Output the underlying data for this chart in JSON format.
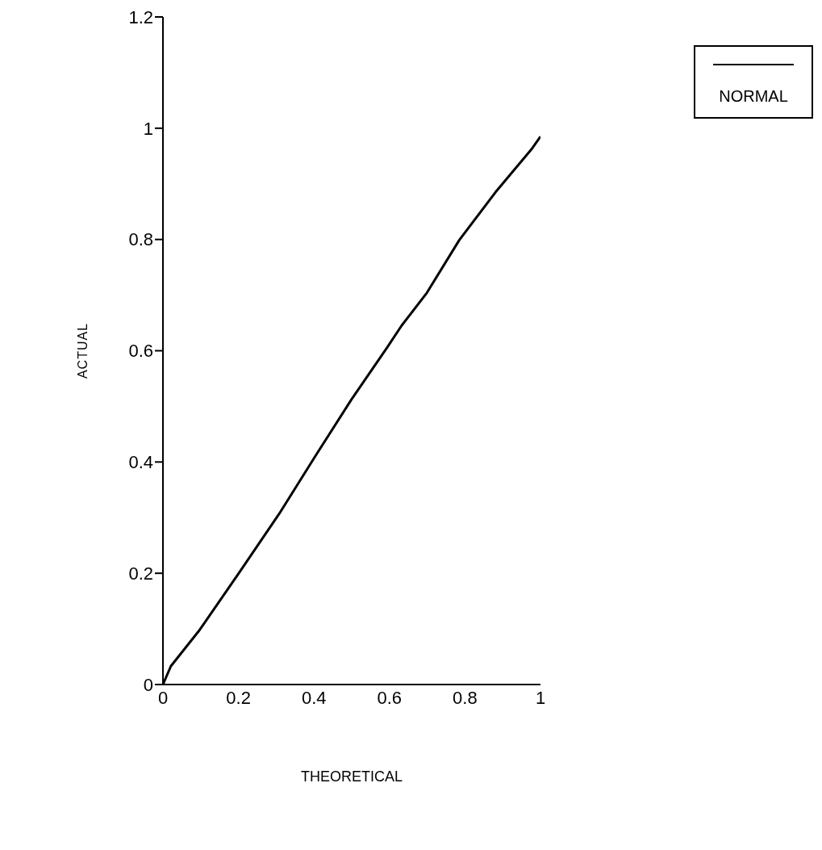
{
  "chart_data": {
    "type": "line",
    "xlabel": "THEORETICAL",
    "ylabel": "ACTUAL",
    "xlim": [
      0,
      1
    ],
    "ylim": [
      0,
      1.2
    ],
    "xticks": [
      0,
      0.2,
      0.4,
      0.6,
      0.8,
      1
    ],
    "yticks": [
      0,
      0.2,
      0.4,
      0.6,
      0.8,
      1,
      1.2
    ],
    "legend": "top right",
    "marker": "none",
    "line_style": "solid",
    "series": [
      {
        "name": "NORMAL",
        "color": "#000000",
        "x": [
          0,
          0.021,
          0.097,
          0.202,
          0.308,
          0.403,
          0.499,
          0.594,
          0.632,
          0.699,
          0.785,
          0.881,
          0.976,
          1
        ],
        "values": [
          0,
          0.033,
          0.098,
          0.201,
          0.307,
          0.41,
          0.512,
          0.606,
          0.645,
          0.704,
          0.799,
          0.885,
          0.962,
          0.985
        ]
      }
    ]
  }
}
